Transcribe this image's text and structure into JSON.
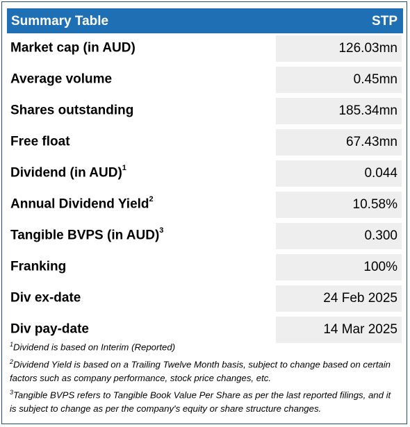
{
  "header": {
    "title": "Summary Table",
    "ticker": "STP"
  },
  "rows": [
    {
      "label": "Market cap (in AUD)",
      "sup": "",
      "value": "126.03mn"
    },
    {
      "label": "Average volume",
      "sup": "",
      "value": "0.45mn"
    },
    {
      "label": "Shares outstanding",
      "sup": "",
      "value": "185.34mn"
    },
    {
      "label": "Free float",
      "sup": "",
      "value": "67.43mn"
    },
    {
      "label": "Dividend (in AUD)",
      "sup": "1",
      "value": "0.044"
    },
    {
      "label": "Annual Dividend Yield",
      "sup": "2",
      "value": "10.58%"
    },
    {
      "label": "Tangible BVPS (in AUD)",
      "sup": "3",
      "value": "0.300"
    },
    {
      "label": "Franking",
      "sup": "",
      "value": "100%"
    },
    {
      "label": "Div ex-date",
      "sup": "",
      "value": "24 Feb 2025"
    },
    {
      "label": "Div pay-date",
      "sup": "",
      "value": "14 Mar 2025"
    }
  ],
  "footnotes": [
    {
      "num": "1",
      "text": "Dividend is based on Interim (Reported)"
    },
    {
      "num": "2",
      "text": "Dividend Yield is based on a Trailing Twelve Month basis, subject to change based on certain factors such as company performance, stock price changes, etc."
    },
    {
      "num": "3",
      "text": "Tangible BVPS refers to Tangible Book Value Per Share as per the last reported filings, and it is subject to change as per the company's equity or share structure changes."
    }
  ]
}
